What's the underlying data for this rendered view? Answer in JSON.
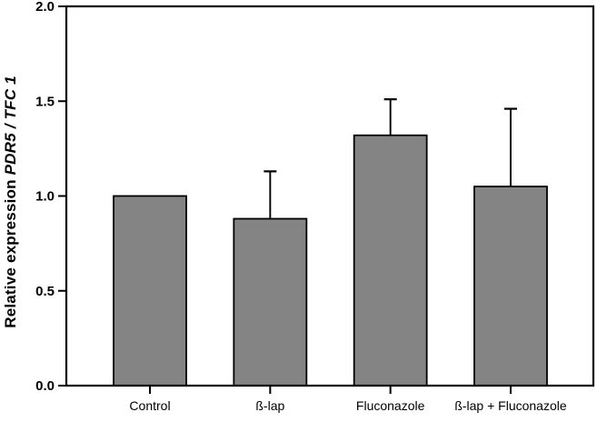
{
  "chart_data": {
    "type": "bar",
    "title": "",
    "categories": [
      "Control",
      "ß-lap",
      "Fluconazole",
      "ß-lap + Fluconazole"
    ],
    "values": [
      1.0,
      0.88,
      1.32,
      1.05
    ],
    "errors_plus": [
      0,
      0.25,
      0.19,
      0.41
    ],
    "error_bar_style": "upper-only-with-cap",
    "xlabel": "",
    "ylabel_regular": "Relative expression ",
    "ylabel_italic": "PDR5 / TFC 1",
    "ylim": [
      0,
      2
    ],
    "ytick_values": [
      0,
      0.5,
      1.0,
      1.5,
      2.0
    ],
    "ytick_labels": [
      "0.0",
      "0.5",
      "1.0",
      "1.5",
      "2.0"
    ],
    "grid": false,
    "legend": null,
    "frame": "full-box"
  },
  "colors": {
    "bar_fill": "#848484",
    "bar_edge": "#000000",
    "axis": "#000000",
    "error_bar": "#000000",
    "text": "#000000",
    "background": "#ffffff"
  }
}
